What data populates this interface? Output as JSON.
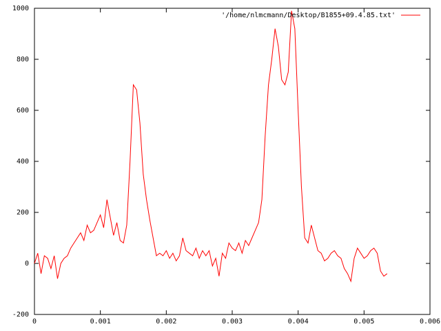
{
  "chart_data": {
    "type": "line",
    "x": [
      0,
      5e-05,
      0.0001,
      0.00015,
      0.0002,
      0.00025,
      0.0003,
      0.00035,
      0.0004,
      0.00045,
      0.0005,
      0.00055,
      0.0006,
      0.00065,
      0.0007,
      0.00075,
      0.0008,
      0.00085,
      0.0009,
      0.00095,
      0.001,
      0.00105,
      0.0011,
      0.00115,
      0.0012,
      0.00125,
      0.0013,
      0.00135,
      0.0014,
      0.00145,
      0.0015,
      0.00155,
      0.0016,
      0.00165,
      0.0017,
      0.00175,
      0.0018,
      0.00185,
      0.0019,
      0.00195,
      0.002,
      0.00205,
      0.0021,
      0.00215,
      0.0022,
      0.00225,
      0.0023,
      0.00235,
      0.0024,
      0.00245,
      0.0025,
      0.00255,
      0.0026,
      0.00265,
      0.0027,
      0.00275,
      0.0028,
      0.00285,
      0.0029,
      0.00295,
      0.003,
      0.00305,
      0.0031,
      0.00315,
      0.0032,
      0.00325,
      0.0033,
      0.00335,
      0.0034,
      0.00345,
      0.0035,
      0.00355,
      0.0036,
      0.00365,
      0.0037,
      0.00375,
      0.0038,
      0.00385,
      0.0039,
      0.00395,
      0.004,
      0.00405,
      0.0041,
      0.00415,
      0.0042,
      0.00425,
      0.0043,
      0.00435,
      0.0044,
      0.00445,
      0.0045,
      0.00455,
      0.0046,
      0.00465,
      0.0047,
      0.00475,
      0.0048,
      0.00485,
      0.0049,
      0.00495,
      0.005,
      0.00505,
      0.0051,
      0.00515,
      0.0052,
      0.00525,
      0.0053,
      0.00535
    ],
    "series": [
      {
        "name": "'/home/nlmcmann/Desktop/B1855+09.4.85.txt'",
        "color": "#ff0000",
        "values": [
          0,
          40,
          -40,
          30,
          20,
          -20,
          30,
          -60,
          0,
          20,
          30,
          60,
          80,
          100,
          120,
          90,
          150,
          120,
          130,
          160,
          190,
          140,
          250,
          180,
          110,
          160,
          90,
          80,
          150,
          400,
          700,
          680,
          550,
          350,
          250,
          170,
          100,
          30,
          40,
          30,
          50,
          20,
          40,
          10,
          30,
          100,
          50,
          40,
          30,
          60,
          20,
          50,
          30,
          50,
          -10,
          20,
          -50,
          40,
          20,
          80,
          60,
          50,
          80,
          40,
          90,
          70,
          100,
          130,
          160,
          250,
          500,
          700,
          800,
          920,
          850,
          720,
          700,
          750,
          990,
          920,
          600,
          300,
          100,
          80,
          150,
          100,
          50,
          40,
          10,
          20,
          40,
          50,
          30,
          20,
          -20,
          -40,
          -70,
          20,
          60,
          40,
          20,
          30,
          50,
          60,
          40,
          -30,
          -50,
          -40
        ]
      }
    ],
    "xlim": [
      0,
      0.006
    ],
    "xticks": [
      0,
      0.001,
      0.002,
      0.003,
      0.004,
      0.005,
      0.006
    ],
    "ylim": [
      -200,
      1000
    ],
    "yticks": [
      -200,
      0,
      200,
      400,
      600,
      800,
      1000
    ],
    "grid": false,
    "legend": "top-right"
  }
}
